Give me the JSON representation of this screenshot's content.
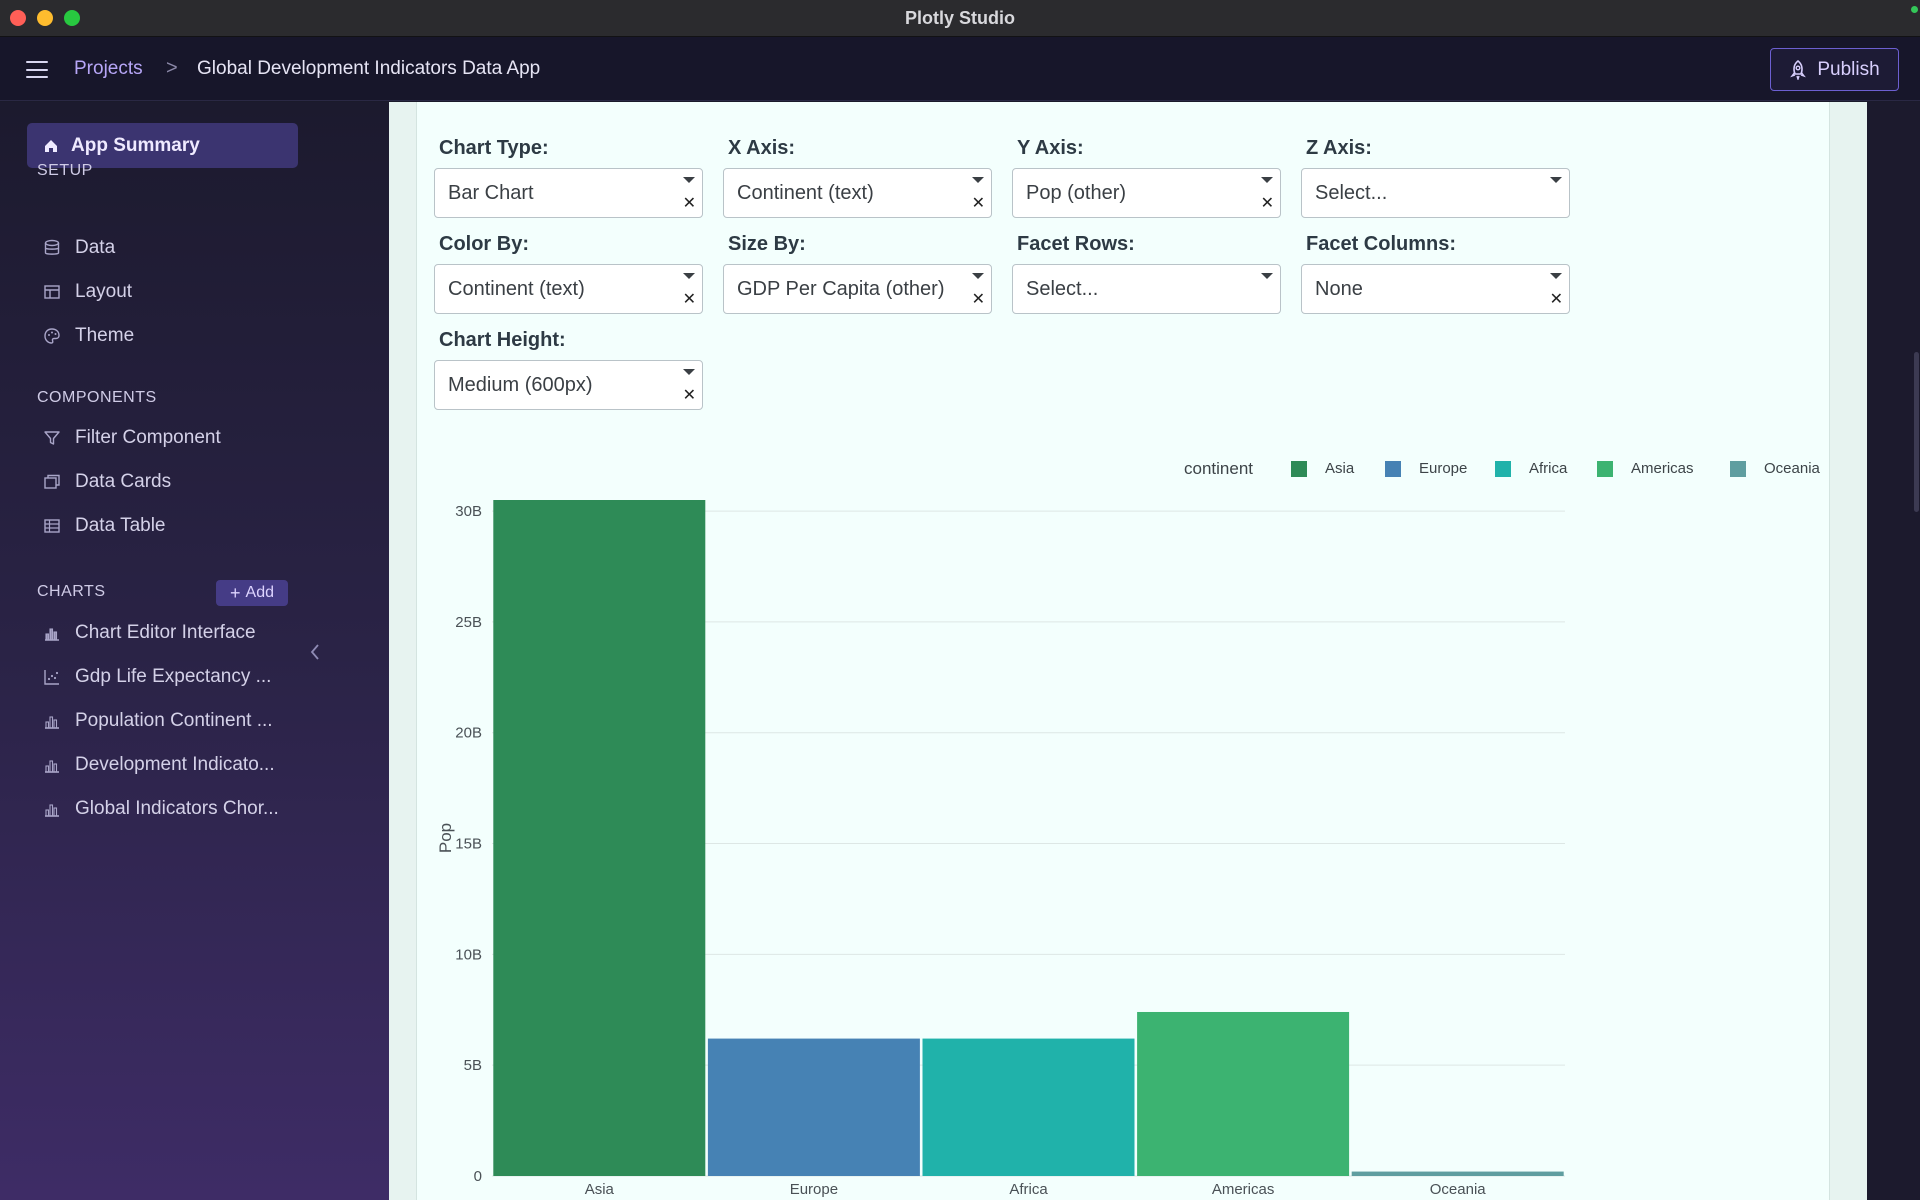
{
  "window": {
    "title": "Plotly Studio"
  },
  "topbar": {
    "breadcrumb_root": "Projects",
    "breadcrumb_sep": ">",
    "breadcrumb_current": "Global Development Indicators Data App",
    "publish_label": "Publish"
  },
  "sidebar": {
    "app_summary": "App Summary",
    "setup_title": "SETUP",
    "setup_items": [
      {
        "label": "Data",
        "icon": "database-icon"
      },
      {
        "label": "Layout",
        "icon": "layout-icon"
      },
      {
        "label": "Theme",
        "icon": "palette-icon"
      }
    ],
    "components_title": "COMPONENTS",
    "component_items": [
      {
        "label": "Filter Component",
        "icon": "filter-icon"
      },
      {
        "label": "Data Cards",
        "icon": "cards-icon"
      },
      {
        "label": "Data Table",
        "icon": "table-icon"
      }
    ],
    "charts_title": "CHARTS",
    "add_label": "Add",
    "chart_items": [
      {
        "label": "Chart Editor Interface",
        "icon": "bar-chart-icon"
      },
      {
        "label": "Gdp Life Expectancy ...",
        "icon": "scatter-chart-icon"
      },
      {
        "label": "Population Continent ...",
        "icon": "bar-chart-icon"
      },
      {
        "label": "Development Indicato...",
        "icon": "bar-chart-icon"
      },
      {
        "label": "Global Indicators Chor...",
        "icon": "bar-chart-icon"
      }
    ]
  },
  "controls": {
    "chart_type": {
      "label": "Chart Type:",
      "value": "Bar Chart"
    },
    "x_axis": {
      "label": "X Axis:",
      "value": "Continent (text)"
    },
    "y_axis": {
      "label": "Y Axis:",
      "value": "Pop (other)"
    },
    "z_axis": {
      "label": "Z Axis:",
      "value": "Select..."
    },
    "color_by": {
      "label": "Color By:",
      "value": "Continent (text)"
    },
    "size_by": {
      "label": "Size By:",
      "value": "GDP Per Capita (other)"
    },
    "facet_rows": {
      "label": "Facet Rows:",
      "value": "Select..."
    },
    "facet_columns": {
      "label": "Facet Columns:",
      "value": "None"
    },
    "chart_height": {
      "label": "Chart Height:",
      "value": "Medium (600px)"
    }
  },
  "chart_data": {
    "type": "bar",
    "categories": [
      "Asia",
      "Europe",
      "Africa",
      "Americas",
      "Oceania"
    ],
    "values": [
      30.5,
      6.2,
      6.2,
      7.4,
      0.2
    ],
    "colors": [
      "#2e8b57",
      "#4682b4",
      "#20b2aa",
      "#3cb371",
      "#5f9ea0"
    ],
    "ylabel": "Pop",
    "ylim": [
      0,
      30.5
    ],
    "yticks": [
      0,
      5,
      10,
      15,
      20,
      25,
      30
    ],
    "ytick_labels": [
      "0",
      "5B",
      "10B",
      "15B",
      "20B",
      "25B",
      "30B"
    ],
    "legend_title": "continent",
    "legend_position": "top-right",
    "grid": true
  }
}
